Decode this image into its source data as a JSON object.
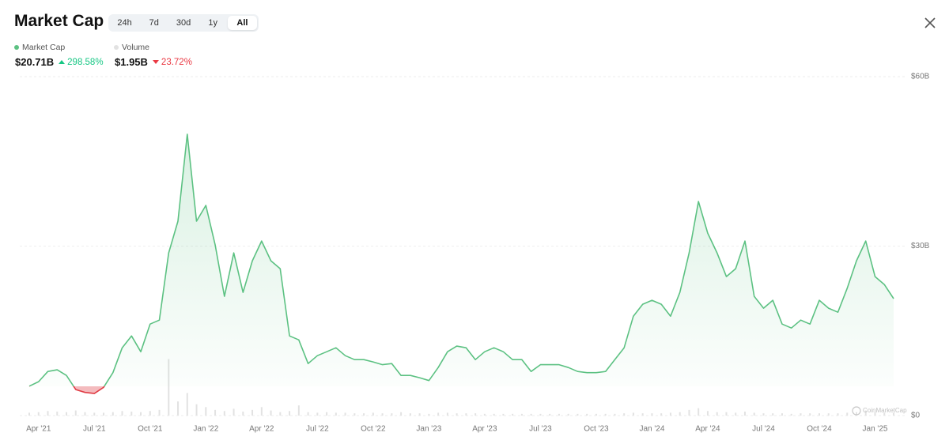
{
  "header": {
    "title": "Market Cap",
    "tabs": [
      "24h",
      "7d",
      "30d",
      "1y",
      "All"
    ],
    "active_tab": 4
  },
  "summary": [
    {
      "value": "$20.71B",
      "change": "298.58%",
      "direction": "up",
      "color": "#16c784"
    },
    {
      "value": "$1.95B",
      "change": "23.72%",
      "direction": "down",
      "color": "#ea3943"
    }
  ],
  "chart_data": {
    "type": "line",
    "categories": [
      null,
      "Apr '21",
      null,
      null,
      null,
      null,
      null,
      "Jul '21",
      null,
      null,
      null,
      null,
      null,
      "Oct '21",
      null,
      null,
      null,
      null,
      null,
      "Jan '22",
      null,
      null,
      null,
      null,
      null,
      "Apr '22",
      null,
      null,
      null,
      null,
      null,
      "Jul '22",
      null,
      null,
      null,
      null,
      null,
      "Oct '22",
      null,
      null,
      null,
      null,
      null,
      "Jan '23",
      null,
      null,
      null,
      null,
      null,
      "Apr '23",
      null,
      null,
      null,
      null,
      null,
      "Jul '23",
      null,
      null,
      null,
      null,
      null,
      "Oct '23",
      null,
      null,
      null,
      null,
      null,
      "Jan '24",
      null,
      null,
      null,
      null,
      null,
      "Apr '24",
      null,
      null,
      null,
      null,
      null,
      "Jul '24",
      null,
      null,
      null,
      null,
      null,
      "Oct '24",
      null,
      null,
      null,
      null,
      null,
      "Jan '25",
      null,
      null
    ],
    "series": [
      {
        "name": "Market Cap",
        "color": "#5cc182",
        "below_color": "#e03c45",
        "values": [
          5.2,
          6.0,
          7.8,
          8.1,
          7.1,
          4.6,
          4.1,
          3.9,
          5.0,
          7.6,
          12.0,
          14.1,
          11.3,
          16.2,
          16.9,
          28.8,
          34.4,
          49.8,
          34.4,
          37.2,
          30.2,
          21.1,
          28.8,
          21.8,
          27.4,
          30.9,
          27.4,
          26.0,
          14.1,
          13.4,
          9.2,
          10.6,
          11.3,
          12.0,
          10.6,
          9.9,
          9.9,
          9.5,
          9.0,
          9.2,
          7.1,
          7.1,
          6.7,
          6.2,
          8.5,
          11.3,
          12.3,
          12.0,
          9.9,
          11.3,
          12.0,
          11.3,
          9.9,
          9.9,
          7.8,
          9.0,
          9.0,
          9.0,
          8.5,
          7.8,
          7.6,
          7.6,
          7.8,
          9.9,
          12.0,
          17.6,
          19.7,
          20.4,
          19.7,
          17.6,
          21.8,
          28.8,
          37.9,
          32.3,
          28.8,
          24.6,
          26.0,
          30.9,
          21.1,
          19.0,
          20.4,
          16.2,
          15.5,
          16.9,
          16.2,
          20.4,
          19.0,
          18.3,
          22.5,
          27.4,
          30.9,
          24.6,
          23.2,
          20.7
        ]
      },
      {
        "name": "Volume",
        "color": "#e2e2e2",
        "type": "bar",
        "values": [
          0.5,
          0.6,
          0.8,
          0.7,
          0.6,
          0.9,
          0.6,
          0.5,
          0.5,
          0.6,
          0.8,
          0.7,
          0.6,
          0.8,
          1.0,
          10,
          2.5,
          4.0,
          2.0,
          1.5,
          1.0,
          0.8,
          1.2,
          0.7,
          1.0,
          1.5,
          0.9,
          0.6,
          0.8,
          1.8,
          0.6,
          0.5,
          0.6,
          0.5,
          0.5,
          0.4,
          0.4,
          0.5,
          0.4,
          0.4,
          0.6,
          0.4,
          0.4,
          0.3,
          0.5,
          0.5,
          0.4,
          0.4,
          0.4,
          0.3,
          0.3,
          0.3,
          0.3,
          0.3,
          0.3,
          0.3,
          0.3,
          0.3,
          0.3,
          0.3,
          0.3,
          0.3,
          0.3,
          0.3,
          0.4,
          0.5,
          0.4,
          0.4,
          0.4,
          0.5,
          0.6,
          1.0,
          1.3,
          0.8,
          0.6,
          0.6,
          0.5,
          0.7,
          0.5,
          0.4,
          0.4,
          0.4,
          0.3,
          0.4,
          0.4,
          0.4,
          0.4,
          0.4,
          0.5,
          0.6,
          0.9,
          0.6,
          0.5,
          0.5
        ]
      }
    ],
    "ylim": [
      0,
      60
    ],
    "yticks": [
      {
        "value": 0,
        "label": "$0"
      },
      {
        "value": 30,
        "label": "$30B"
      },
      {
        "value": 60,
        "label": "$60B"
      }
    ],
    "grid": true,
    "watermark": "CoinMarketCap"
  }
}
